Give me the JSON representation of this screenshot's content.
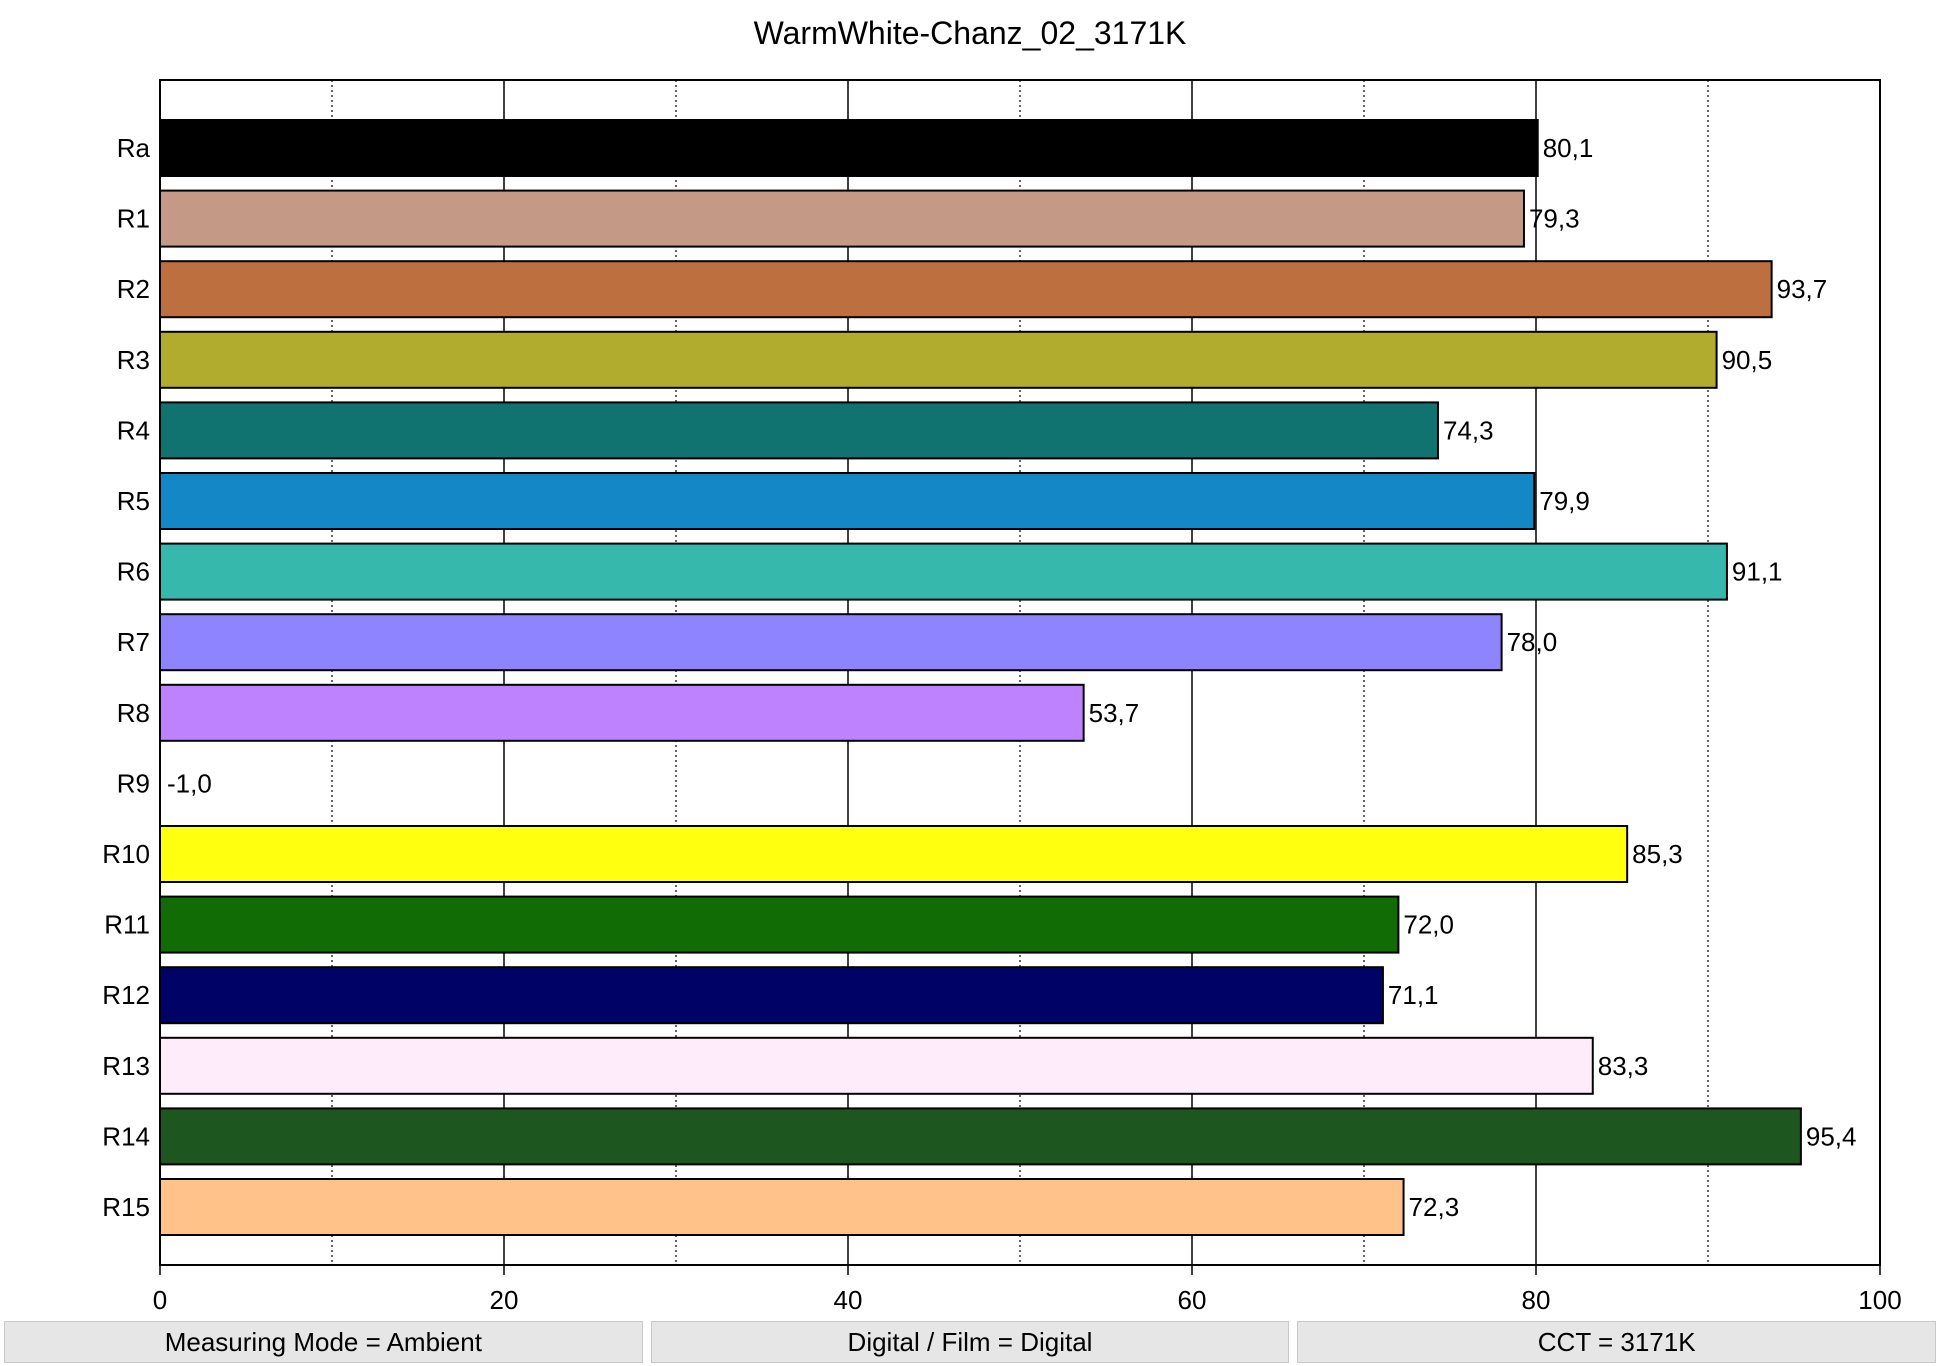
{
  "chart_data": {
    "type": "bar",
    "orientation": "horizontal",
    "title": "WarmWhite-Chanz_02_3171K",
    "xlabel": "",
    "ylabel": "",
    "xlim": [
      0,
      100
    ],
    "x_ticks": [
      0,
      20,
      40,
      60,
      80,
      100
    ],
    "x_tick_labels": [
      "0",
      "20",
      "40",
      "60",
      "80",
      "100"
    ],
    "minor_gridlines": [
      10,
      30,
      50,
      70,
      90
    ],
    "grid": true,
    "categories": [
      "Ra",
      "R1",
      "R2",
      "R3",
      "R4",
      "R5",
      "R6",
      "R7",
      "R8",
      "R9",
      "R10",
      "R11",
      "R12",
      "R13",
      "R14",
      "R15"
    ],
    "values": [
      80.1,
      79.3,
      93.7,
      90.5,
      74.3,
      79.9,
      91.1,
      78.0,
      53.7,
      -1.0,
      85.3,
      72.0,
      71.1,
      83.3,
      95.4,
      72.3
    ],
    "value_labels": [
      "80,1",
      "79,3",
      "93,7",
      "90,5",
      "74,3",
      "79,9",
      "91,1",
      "78,0",
      "53,7",
      "-1,0",
      "85,3",
      "72,0",
      "71,1",
      "83,3",
      "95,4",
      "72,3"
    ],
    "colors": [
      "#000000",
      "#c49a87",
      "#bd6f40",
      "#b1ac2d",
      "#117370",
      "#1488c6",
      "#36b8ad",
      "#8e84ff",
      "#be82ff",
      "#ffffff",
      "#ffff10",
      "#126c06",
      "#010266",
      "#ffecfa",
      "#1d561e",
      "#ffc38a"
    ]
  },
  "status": {
    "measuring_mode": "Measuring Mode = Ambient",
    "digital_film": "Digital / Film = Digital",
    "cct": "CCT = 3171K"
  }
}
